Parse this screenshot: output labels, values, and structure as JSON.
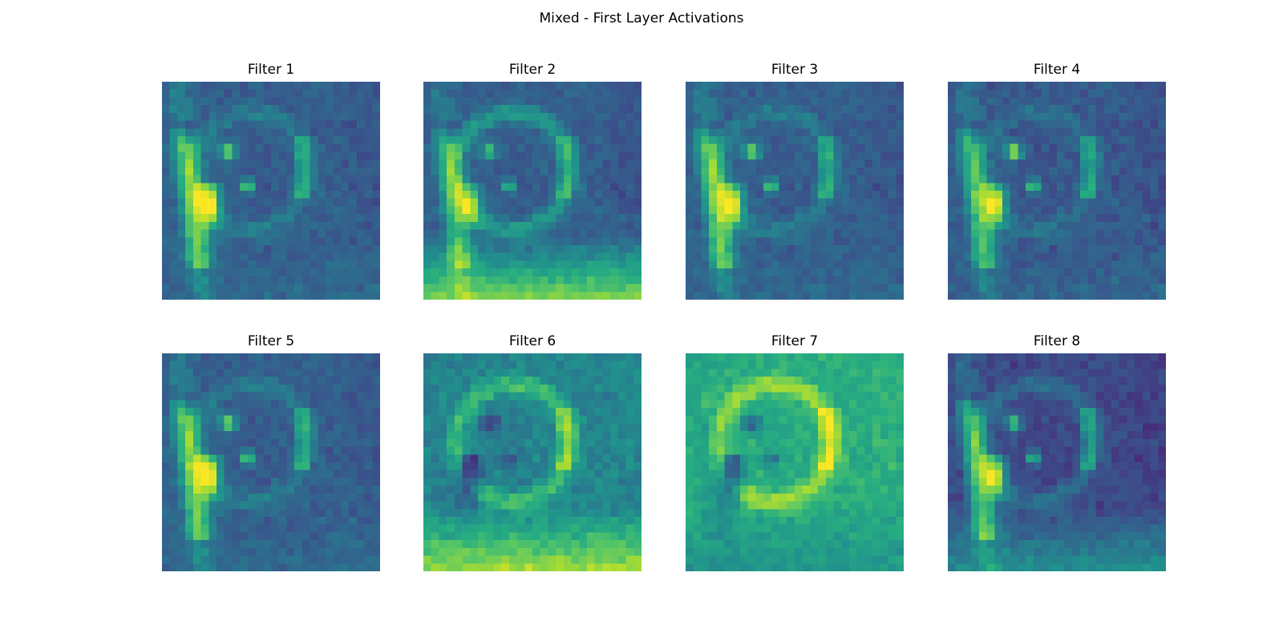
{
  "figure": {
    "title": "Mixed - First Layer Activations"
  },
  "panels": [
    {
      "title": "Filter 1",
      "colormap": "viridis",
      "variant": 0
    },
    {
      "title": "Filter 2",
      "colormap": "viridis",
      "variant": 1
    },
    {
      "title": "Filter 3",
      "colormap": "viridis",
      "variant": 2
    },
    {
      "title": "Filter 4",
      "colormap": "viridis",
      "variant": 3
    },
    {
      "title": "Filter 5",
      "colormap": "viridis",
      "variant": 4
    },
    {
      "title": "Filter 6",
      "colormap": "viridis",
      "variant": 5
    },
    {
      "title": "Filter 7",
      "colormap": "viridis",
      "variant": 6
    },
    {
      "title": "Filter 8",
      "colormap": "viridis",
      "variant": 7
    }
  ],
  "colors": {
    "viridis_dark": "#440154",
    "viridis_mid": "#21918c",
    "viridis_light": "#fde725"
  }
}
